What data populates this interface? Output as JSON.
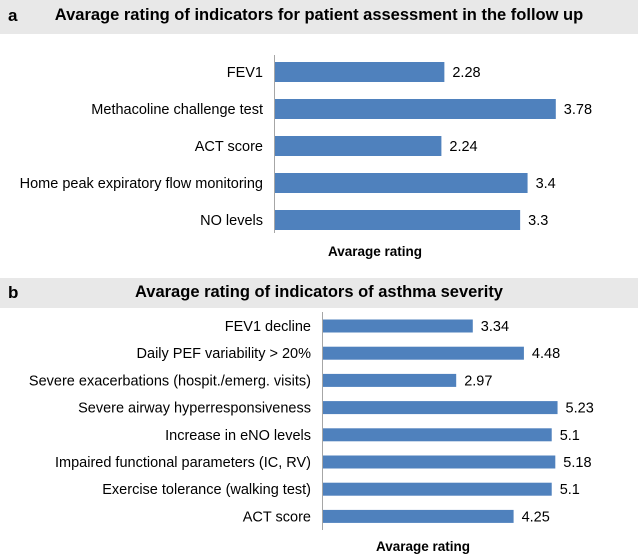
{
  "panels": [
    {
      "letter": "a",
      "title": "Avarage rating of indicators for patient assessment in the follow up"
    },
    {
      "letter": "b",
      "title": "Avarage rating of indicators of asthma severity"
    }
  ],
  "colors": {
    "bar": "#4f81bd",
    "header": "#e8e8e8",
    "axis": "#a6a6a6"
  },
  "chart_data": [
    {
      "type": "bar",
      "orientation": "horizontal",
      "title": "Avarage rating of indicators for patient assessment in the follow up",
      "categories": [
        "FEV1",
        "Methacoline challenge test",
        "ACT score",
        "Home peak expiratory flow monitoring",
        "NO levels"
      ],
      "values": [
        2.28,
        3.78,
        2.24,
        3.4,
        3.3
      ],
      "value_labels": [
        "2.28",
        "3.78",
        "2.24",
        "3.4",
        "3.3"
      ],
      "xlabel": "Avarage rating",
      "ylabel": "",
      "xlim": [
        0,
        4.2
      ],
      "grid": false
    },
    {
      "type": "bar",
      "orientation": "horizontal",
      "title": "Avarage rating of indicators of asthma severity",
      "categories": [
        "FEV1 decline",
        "Daily PEF variability > 20%",
        "Severe exacerbations (hospit./emerg. visits)",
        "Severe airway hyperresponsiveness",
        "Increase in eNO levels",
        "Impaired functional parameters (IC, RV)",
        "Exercise tolerance (walking test)",
        "ACT score"
      ],
      "values": [
        3.34,
        4.48,
        2.97,
        5.23,
        5.1,
        5.18,
        5.1,
        4.25
      ],
      "value_labels": [
        "3.34",
        "4.48",
        "2.97",
        "5.23",
        "5.1",
        "5.18",
        "5.1",
        "4.25"
      ],
      "xlabel": "Avarage rating",
      "ylabel": "",
      "xlim": [
        0,
        5.53
      ],
      "grid": false
    }
  ]
}
